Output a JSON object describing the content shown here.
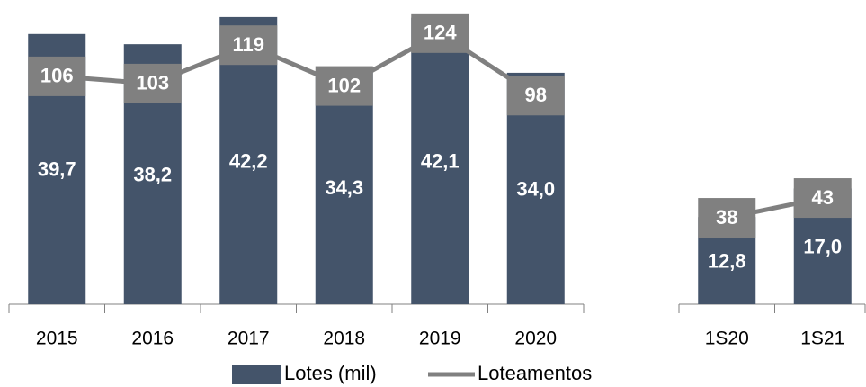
{
  "chart_data": [
    {
      "type": "bar_line",
      "categories": [
        "2015",
        "2016",
        "2017",
        "2018",
        "2019",
        "2020"
      ],
      "ylim": [
        0,
        44.7
      ],
      "y2lim": [
        11.2,
        137.8
      ],
      "series": [
        {
          "name": "Lotes (mil)",
          "color": "#44546a",
          "values": [
            39.7,
            38.2,
            42.2,
            34.3,
            42.1,
            34.0
          ],
          "value_labels": [
            "39,7",
            "38,2",
            "42,2",
            "34,3",
            "42,1",
            "34,0"
          ]
        },
        {
          "name": "Loteamentos",
          "color": "#808080",
          "axis": "y2",
          "values": [
            106,
            103,
            119,
            102,
            124,
            98
          ]
        }
      ]
    },
    {
      "type": "bar_line",
      "categories": [
        "1S20",
        "1S21"
      ],
      "ylim": [
        0,
        44.7
      ],
      "y2lim": [
        16.2,
        93
      ],
      "series": [
        {
          "color": "#44546a",
          "values": [
            12.8,
            17.0
          ],
          "value_labels": [
            "12,8",
            "17,0"
          ]
        },
        {
          "color": "#808080",
          "axis": "y2",
          "values": [
            38,
            43
          ]
        }
      ]
    }
  ]
}
